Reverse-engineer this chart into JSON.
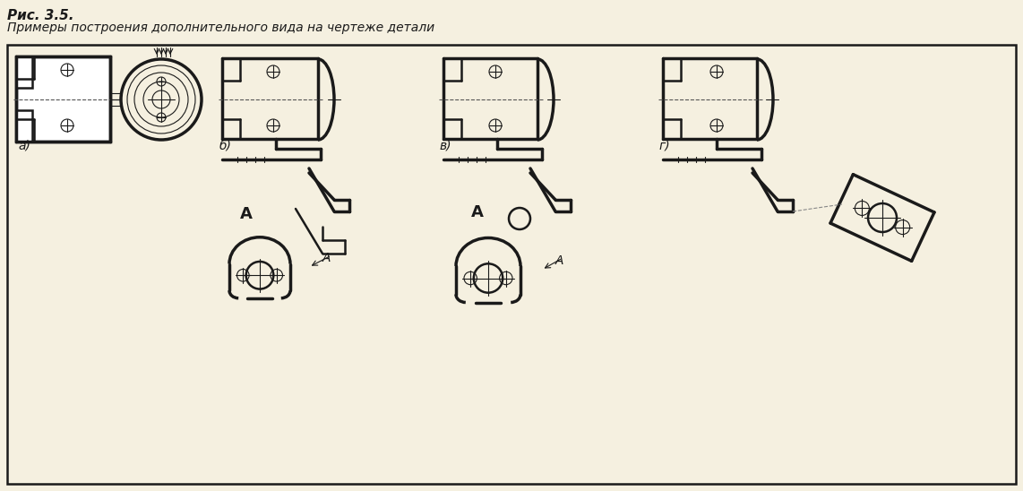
{
  "title_line1": "Рис. 3.5.",
  "title_line2": "Примеры построения дополнительного вида на чертеже детали",
  "bg_color": "#f5f0e0",
  "line_color": "#1a1a1a",
  "border_color": "#1a1a1a",
  "label_a": "А",
  "label_alpha": "а)",
  "label_b": "б)",
  "label_v": "в)",
  "label_g": "г)"
}
